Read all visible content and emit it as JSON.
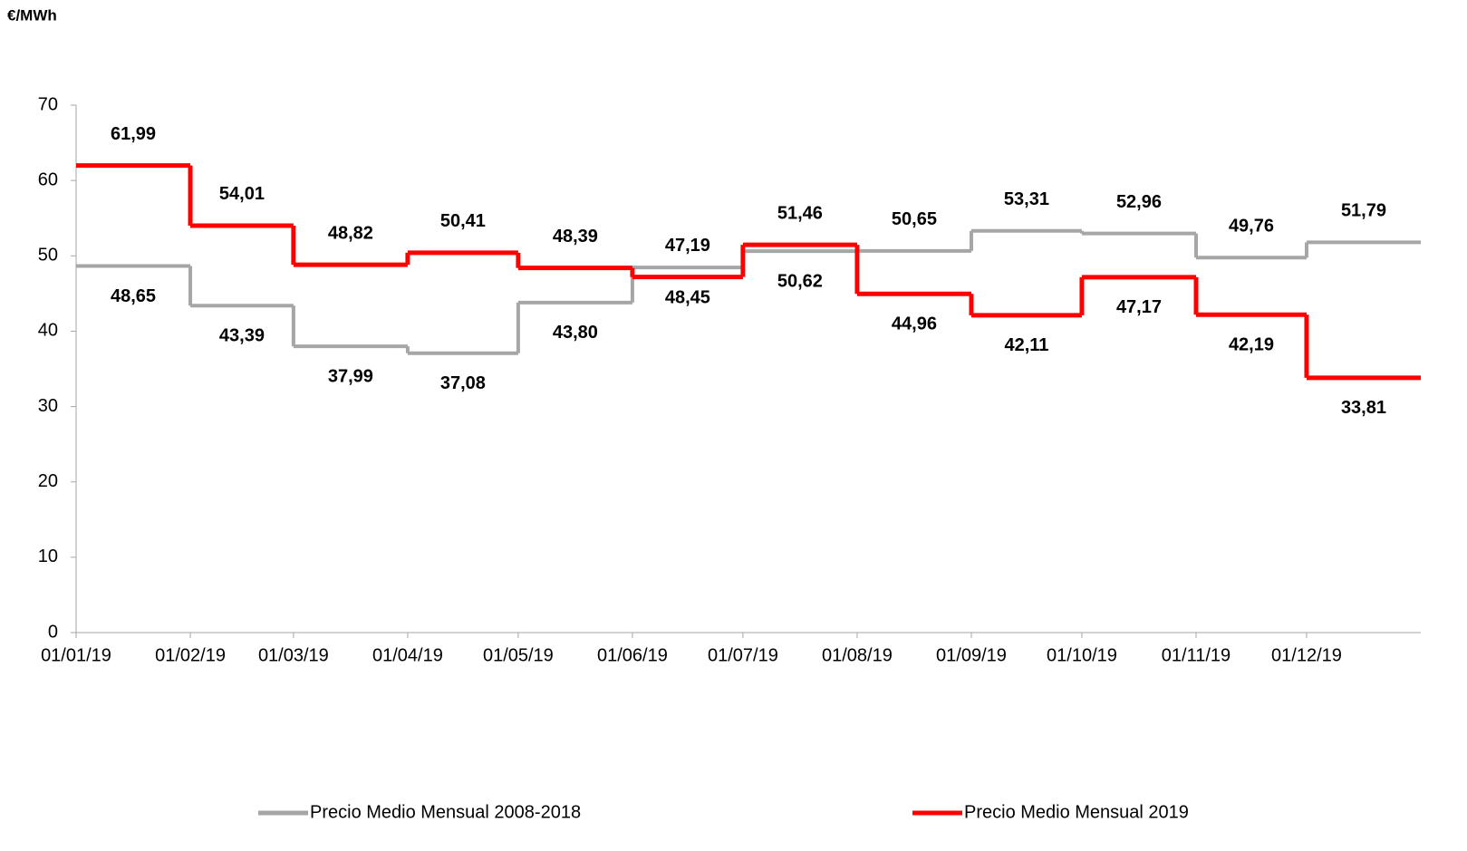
{
  "chart_data": {
    "type": "step",
    "y_label": "€/MWh",
    "x": [
      "01/01/19",
      "01/02/19",
      "01/03/19",
      "01/04/19",
      "01/05/19",
      "01/06/19",
      "01/07/19",
      "01/08/19",
      "01/09/19",
      "01/10/19",
      "01/11/19",
      "01/12/19"
    ],
    "series": [
      {
        "name": "Precio Medio Mensual 2008-2018",
        "color": "#a6a6a6",
        "label_color": "#000000",
        "values": [
          48.65,
          43.39,
          37.99,
          37.08,
          43.8,
          48.45,
          50.62,
          50.65,
          53.31,
          52.96,
          49.76,
          51.79
        ],
        "value_labels": [
          "48,65",
          "43,39",
          "37,99",
          "37,08",
          "43,80",
          "48,45",
          "50,62",
          "50,65",
          "53,31",
          "52,96",
          "49,76",
          "51,79"
        ]
      },
      {
        "name": "Precio Medio Mensual 2019",
        "color": "#ff0000",
        "label_color": "#c00000",
        "values": [
          61.99,
          54.01,
          48.82,
          50.41,
          48.39,
          47.19,
          51.46,
          44.96,
          42.11,
          47.17,
          42.19,
          33.81
        ],
        "value_labels": [
          "61,99",
          "54,01",
          "48,82",
          "50,41",
          "48,39",
          "47,19",
          "51,46",
          "44,96",
          "42,11",
          "47,17",
          "42,19",
          "33,81"
        ]
      }
    ],
    "ylim": [
      0,
      70
    ],
    "yticks": [
      0,
      10,
      20,
      30,
      40,
      50,
      60,
      70
    ],
    "legend": "bottom"
  }
}
